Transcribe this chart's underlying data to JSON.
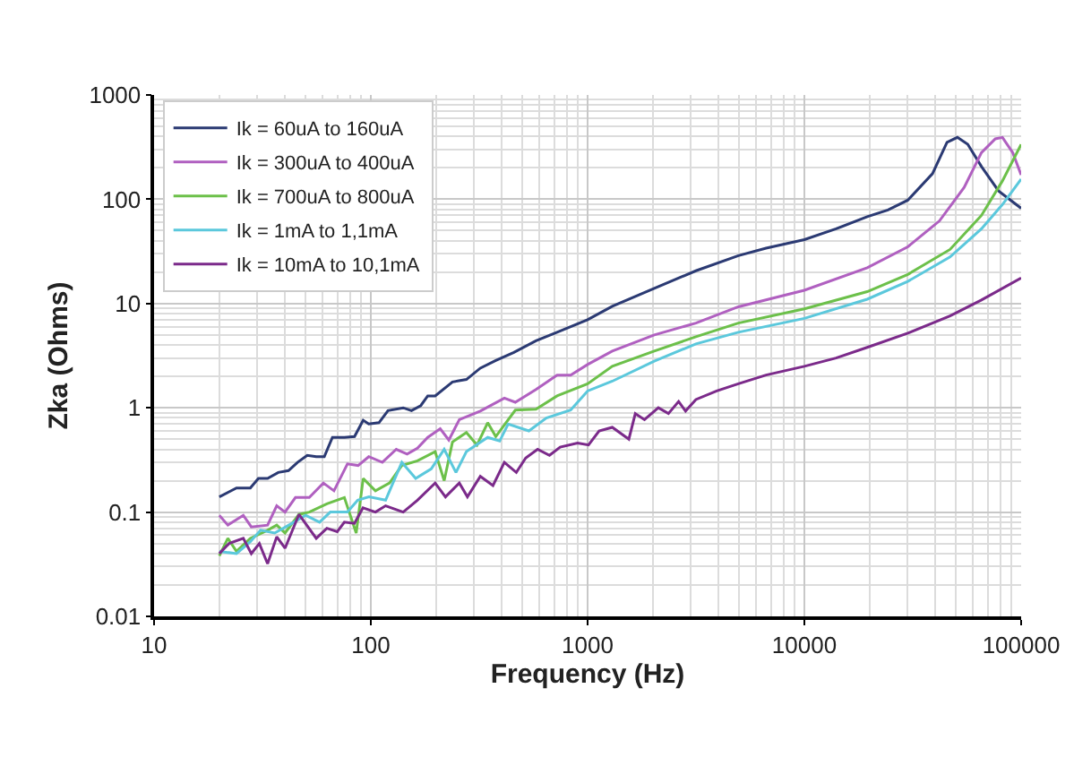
{
  "chart_data": {
    "type": "line",
    "xlabel": "Frequency (Hz)",
    "ylabel": "Zka (Ohms)",
    "log": "xy",
    "grid": true,
    "legend": "top left",
    "marker": "none",
    "line_style": "solid",
    "xlim": [
      10,
      100000
    ],
    "xticks": [
      10,
      100,
      1000,
      10000,
      100000
    ],
    "ylim": [
      0.01,
      1000
    ],
    "yticks": [
      0.01,
      0.1,
      1,
      10,
      100,
      1000
    ],
    "series": [
      {
        "name": "Ik = 60uA to 160uA",
        "color": "#2b3a73",
        "x": [
          20,
          24,
          27.8,
          30.3,
          33.4,
          37.4,
          41.7,
          45.9,
          50.9,
          56,
          61,
          66.5,
          75.5,
          84.1,
          92.2,
          97.8,
          109,
          120,
          141,
          154,
          170,
          183,
          198,
          238,
          276,
          320,
          377,
          457,
          578,
          723,
          1000,
          1300,
          2030,
          3160,
          4960,
          6660,
          10000,
          14000,
          19500,
          24300,
          30000,
          39000,
          45500,
          50800,
          56700,
          65600,
          78700,
          100000
        ],
        "values": [
          0.14,
          0.17,
          0.17,
          0.21,
          0.21,
          0.24,
          0.25,
          0.3,
          0.35,
          0.34,
          0.34,
          0.52,
          0.52,
          0.53,
          0.76,
          0.7,
          0.72,
          0.94,
          1.0,
          0.94,
          1.05,
          1.3,
          1.3,
          1.77,
          1.87,
          2.4,
          2.84,
          3.4,
          4.4,
          5.3,
          7.0,
          9.4,
          14,
          20.6,
          28.8,
          34,
          41,
          52,
          68,
          79,
          98,
          176,
          352,
          392,
          337,
          206,
          120,
          82
        ]
      },
      {
        "name": "Ik = 300uA to 400uA",
        "color": "#b060c0",
        "x": [
          20,
          21.9,
          25.8,
          28.1,
          33.4,
          36.8,
          40.2,
          44.9,
          52,
          60.4,
          67.6,
          78,
          87.4,
          97.8,
          113,
          131,
          147,
          164,
          183,
          209,
          229,
          256,
          320,
          413,
          464,
          578,
          723,
          835,
          1000,
          1300,
          2030,
          3160,
          4960,
          10000,
          19500,
          30000,
          42000,
          54600,
          65600,
          76000,
          82000,
          91500,
          100000
        ],
        "values": [
          0.093,
          0.075,
          0.093,
          0.072,
          0.075,
          0.115,
          0.1,
          0.138,
          0.138,
          0.19,
          0.16,
          0.29,
          0.28,
          0.34,
          0.3,
          0.4,
          0.36,
          0.41,
          0.52,
          0.63,
          0.49,
          0.77,
          0.93,
          1.24,
          1.13,
          1.5,
          2.06,
          2.06,
          2.6,
          3.5,
          5.0,
          6.5,
          9.3,
          13.4,
          22,
          35,
          62,
          130,
          280,
          380,
          392,
          280,
          171
        ]
      },
      {
        "name": "Ik = 700uA to 800uA",
        "color": "#6cc04a",
        "x": [
          20,
          21.9,
          24,
          27.8,
          33.4,
          36.8,
          40.2,
          46.6,
          52,
          62.7,
          75.5,
          85.6,
          92.2,
          105,
          122,
          139,
          164,
          198,
          218,
          238,
          276,
          309,
          346,
          377,
          464,
          578,
          723,
          1000,
          1300,
          2030,
          3160,
          4960,
          10000,
          19500,
          30000,
          47000,
          65600,
          82000,
          100000
        ],
        "values": [
          0.038,
          0.056,
          0.042,
          0.056,
          0.067,
          0.075,
          0.063,
          0.095,
          0.1,
          0.12,
          0.138,
          0.063,
          0.21,
          0.16,
          0.19,
          0.28,
          0.31,
          0.38,
          0.2,
          0.47,
          0.58,
          0.44,
          0.72,
          0.53,
          0.95,
          0.97,
          1.3,
          1.7,
          2.5,
          3.5,
          4.8,
          6.5,
          8.9,
          13,
          19,
          33,
          70,
          150,
          336
        ]
      },
      {
        "name": "Ik = 1mA to 1,1mA",
        "color": "#5bc8dc",
        "x": [
          20,
          24,
          27.8,
          31,
          36,
          43.3,
          50,
          58,
          65,
          78,
          87,
          98,
          117,
          139,
          161,
          190,
          218,
          247,
          276,
          346,
          393,
          430,
          536,
          645,
          835,
          1000,
          1300,
          2030,
          3160,
          4960,
          10000,
          19500,
          30000,
          47000,
          65600,
          82000,
          100000
        ],
        "values": [
          0.042,
          0.04,
          0.052,
          0.067,
          0.063,
          0.078,
          0.093,
          0.08,
          0.1,
          0.1,
          0.13,
          0.14,
          0.13,
          0.3,
          0.21,
          0.26,
          0.4,
          0.24,
          0.38,
          0.52,
          0.48,
          0.7,
          0.6,
          0.8,
          0.95,
          1.45,
          1.8,
          2.8,
          4.1,
          5.3,
          7.2,
          11,
          16.3,
          28,
          52,
          89,
          156
        ]
      },
      {
        "name": "Ik = 10mA to 10,1mA",
        "color": "#7b2a8a",
        "x": [
          20,
          22.2,
          25.8,
          28.1,
          30.6,
          33.4,
          36.8,
          40.2,
          46.6,
          56,
          62.7,
          70,
          75.5,
          84,
          92,
          105,
          117,
          141,
          164,
          198,
          221,
          256,
          279,
          320,
          366,
          413,
          469,
          518,
          588,
          667,
          747,
          899,
          1010,
          1130,
          1300,
          1550,
          1660,
          1830,
          2120,
          2360,
          2630,
          2830,
          3160,
          3940,
          4960,
          6660,
          10000,
          14000,
          19500,
          30000,
          47000,
          65600,
          100000
        ],
        "values": [
          0.04,
          0.05,
          0.056,
          0.04,
          0.05,
          0.032,
          0.058,
          0.045,
          0.095,
          0.056,
          0.07,
          0.065,
          0.08,
          0.078,
          0.11,
          0.1,
          0.115,
          0.1,
          0.13,
          0.19,
          0.14,
          0.19,
          0.14,
          0.22,
          0.18,
          0.3,
          0.24,
          0.33,
          0.4,
          0.35,
          0.42,
          0.46,
          0.44,
          0.6,
          0.65,
          0.5,
          0.88,
          0.77,
          1.0,
          0.88,
          1.15,
          0.93,
          1.2,
          1.45,
          1.7,
          2.06,
          2.5,
          3.0,
          3.8,
          5.2,
          7.6,
          10.8,
          17.6
        ]
      }
    ]
  }
}
